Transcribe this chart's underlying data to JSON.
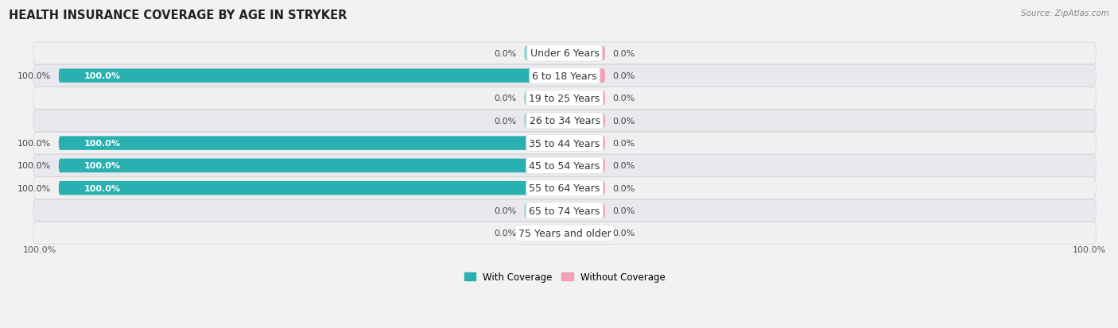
{
  "title": "HEALTH INSURANCE COVERAGE BY AGE IN STRYKER",
  "source": "Source: ZipAtlas.com",
  "categories": [
    "Under 6 Years",
    "6 to 18 Years",
    "19 to 25 Years",
    "26 to 34 Years",
    "35 to 44 Years",
    "45 to 54 Years",
    "55 to 64 Years",
    "65 to 74 Years",
    "75 Years and older"
  ],
  "with_coverage": [
    0.0,
    100.0,
    0.0,
    0.0,
    100.0,
    100.0,
    100.0,
    0.0,
    0.0
  ],
  "without_coverage": [
    0.0,
    0.0,
    0.0,
    0.0,
    0.0,
    0.0,
    0.0,
    0.0,
    0.0
  ],
  "color_with_full": "#2ab0b0",
  "color_with_stub": "#92d4d4",
  "color_without": "#f4a0b8",
  "bar_height": 0.62,
  "bg_stripe_a": "#f0f0f0",
  "bg_stripe_b": "#e8e8ee",
  "title_fontsize": 10.5,
  "cat_fontsize": 9,
  "val_fontsize": 8,
  "x_min": -100,
  "x_max": 100,
  "stub_size": 8,
  "legend_with": "With Coverage",
  "legend_without": "Without Coverage"
}
